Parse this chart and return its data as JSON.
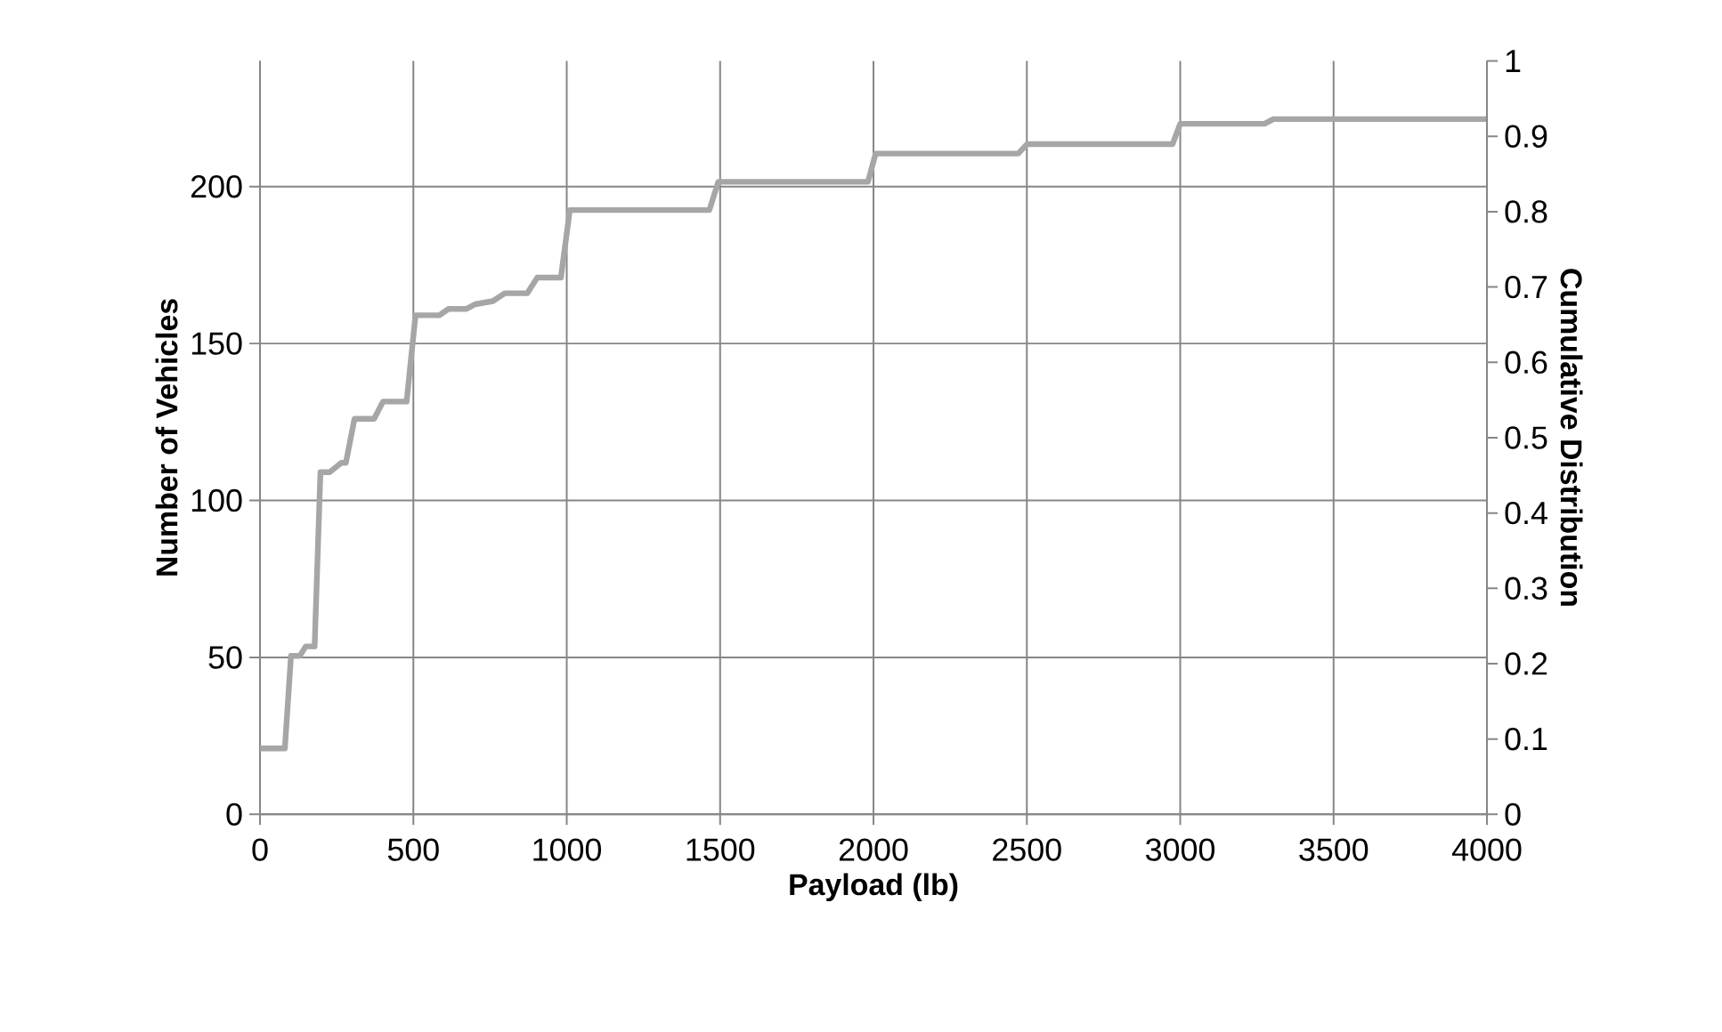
{
  "chart_data": {
    "type": "line",
    "xlabel": "Payload (lb)",
    "ylabel": "Number of Vehicles",
    "y2label": "Cumulative Distribution",
    "series": [
      {
        "color": "#a6a6a6",
        "x": [
          0,
          81,
          101,
          130,
          149,
          178,
          197,
          227,
          265,
          280,
          308,
          372,
          401,
          478,
          507,
          585,
          614,
          672,
          701,
          759,
          798,
          871,
          904,
          981,
          1010,
          1465,
          1494,
          1982,
          2007,
          2472,
          2501,
          2975,
          3000,
          3275,
          3304,
          4000
        ],
        "values": [
          21,
          21,
          50.5,
          50.5,
          53.5,
          53.5,
          109,
          109,
          112,
          112,
          126,
          126,
          131.5,
          131.5,
          159,
          159,
          161,
          161,
          162.5,
          163.5,
          166,
          166,
          171,
          171,
          192.5,
          192.5,
          201.5,
          201.5,
          210.5,
          210.5,
          213.5,
          213.5,
          220,
          220,
          221.5,
          221.5
        ]
      }
    ],
    "xlim": [
      0,
      4000
    ],
    "xticks": [
      0,
      500,
      1000,
      1500,
      2000,
      2500,
      3000,
      3500,
      4000
    ],
    "ylim": [
      0,
      240
    ],
    "yticks": [
      0,
      50,
      100,
      150,
      200
    ],
    "y2lim": [
      0,
      1
    ],
    "y2ticks": [
      0,
      0.1,
      0.2,
      0.3,
      0.4,
      0.5,
      0.6,
      0.7,
      0.8,
      0.9,
      1
    ],
    "grid": true,
    "line_style": "solid",
    "marker": "none"
  }
}
